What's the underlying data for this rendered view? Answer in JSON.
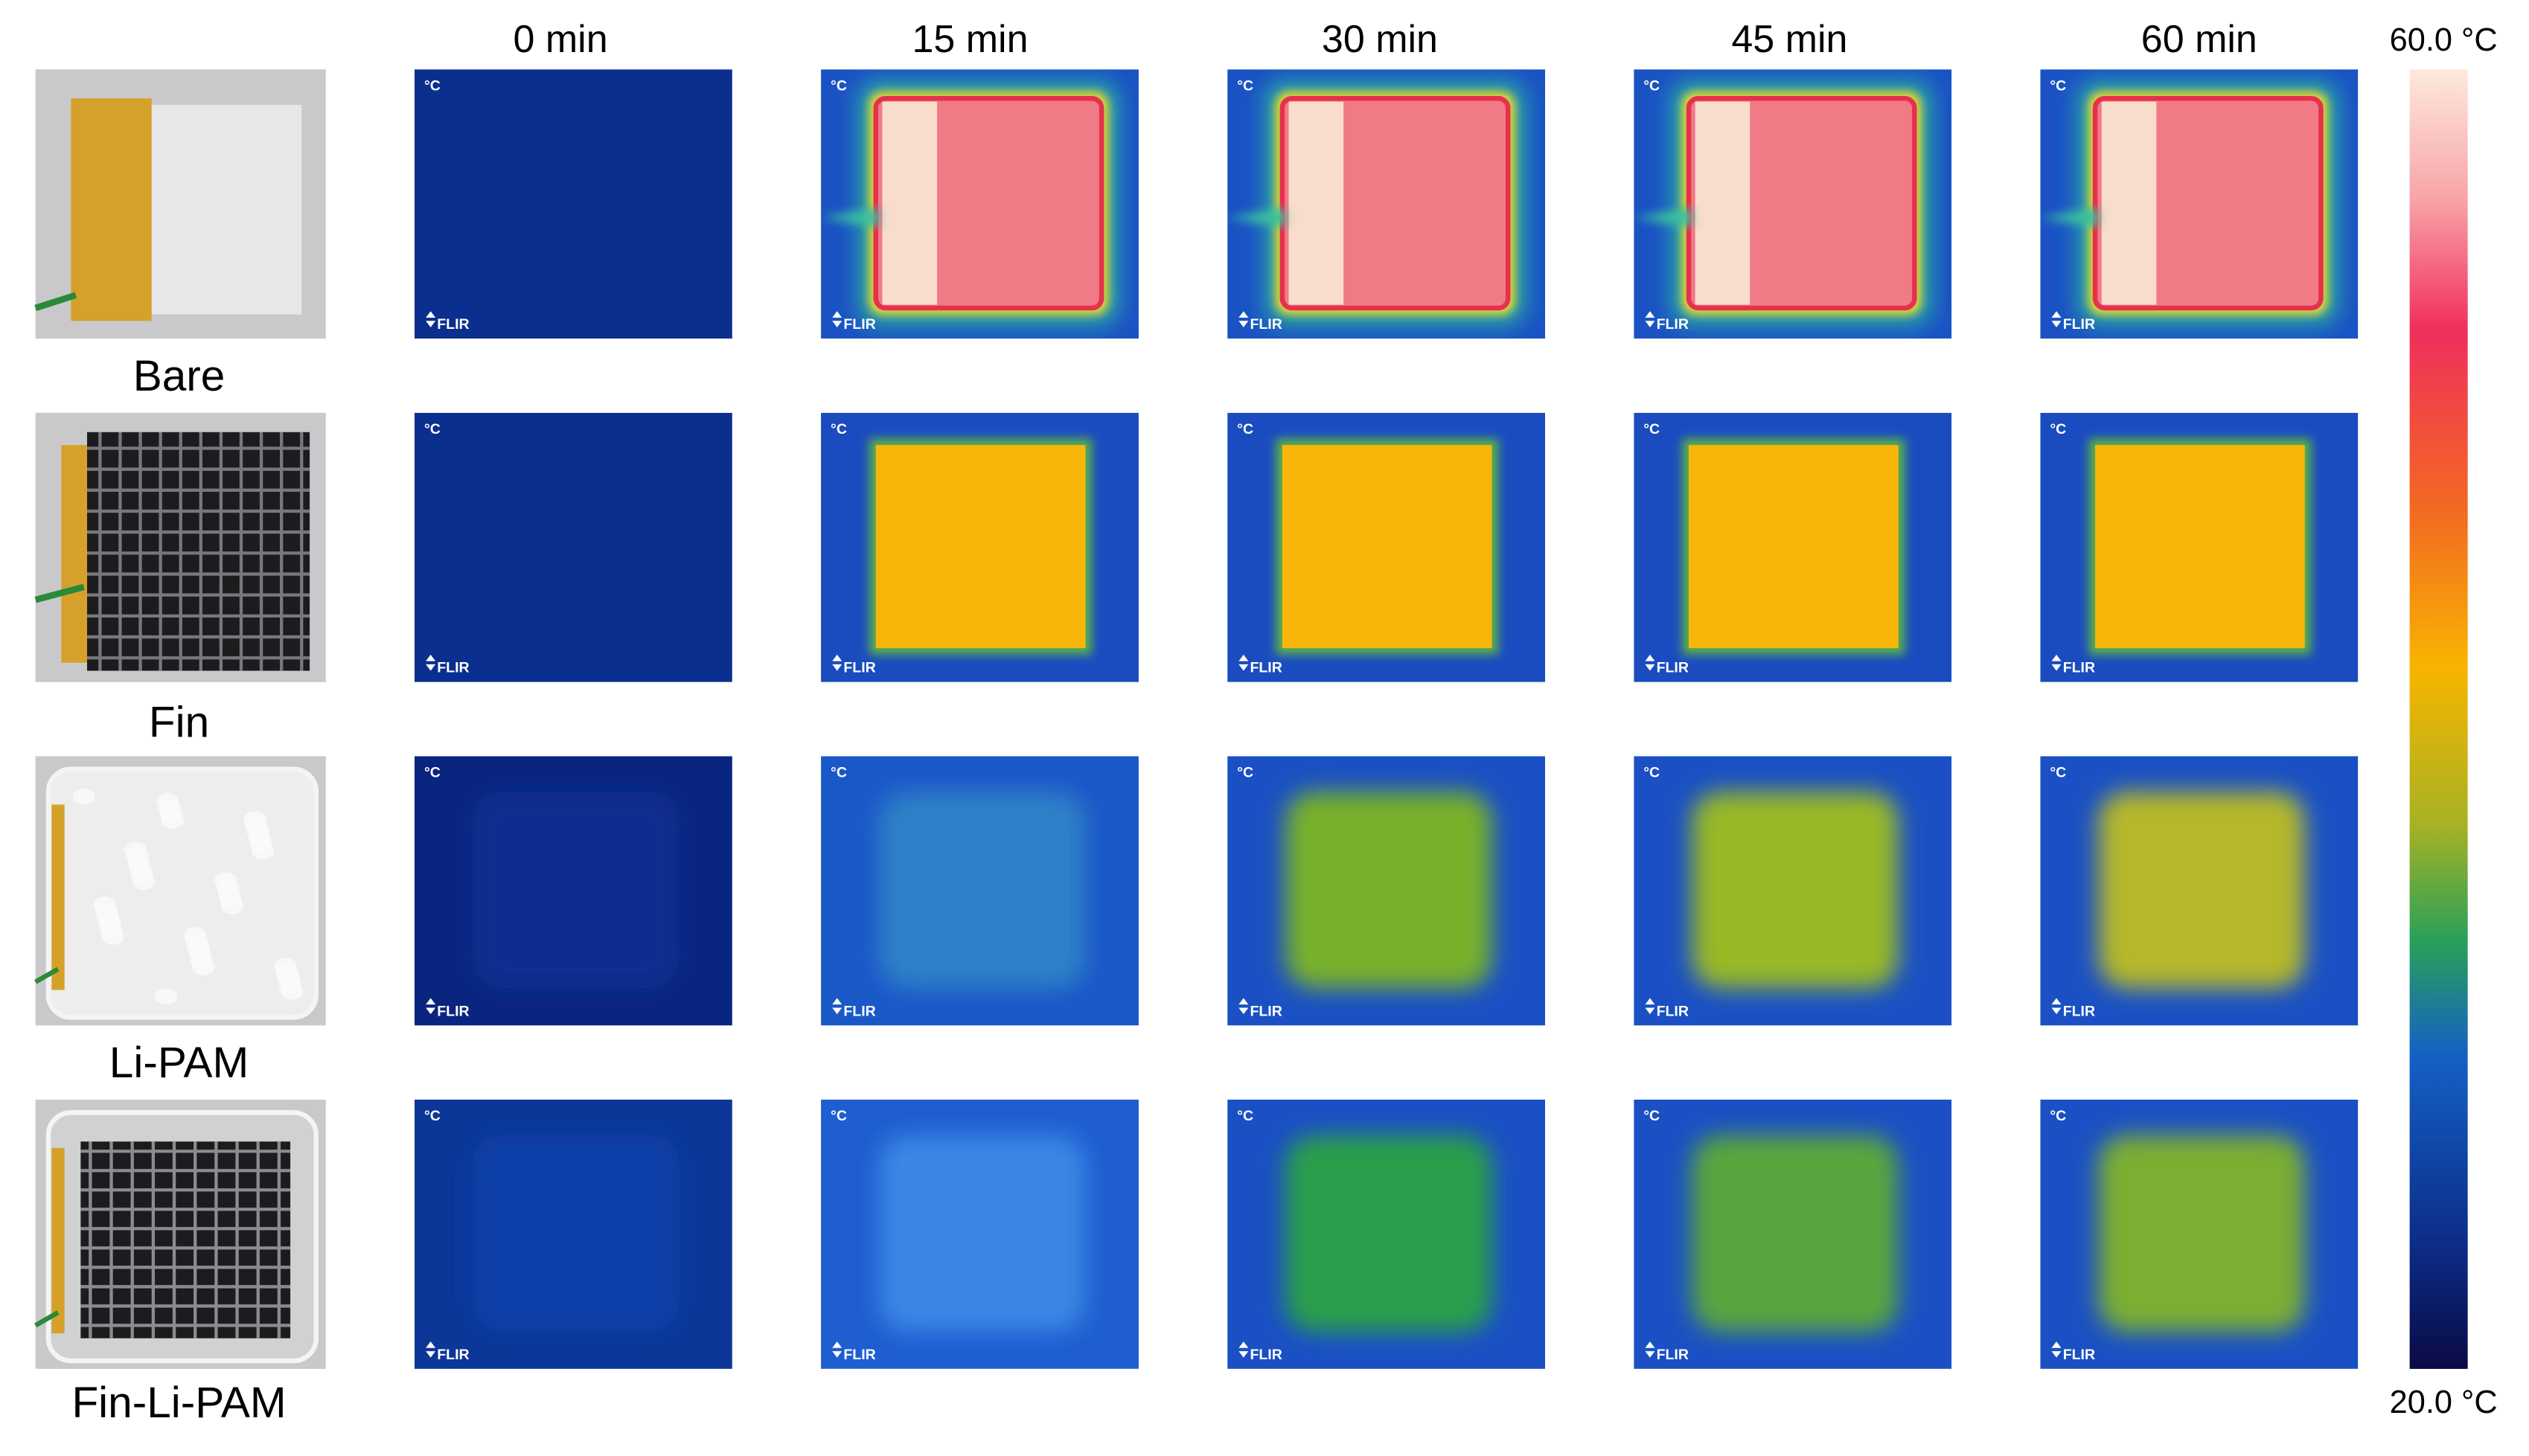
{
  "column_headers": [
    "0 min",
    "15 min",
    "30 min",
    "45 min",
    "60 min"
  ],
  "row_labels": [
    "Bare",
    "Fin",
    "Li-PAM",
    "Fin-Li-PAM"
  ],
  "colorbar": {
    "max_label": "60.0 °C",
    "min_label": "20.0 °C"
  },
  "camera_overlay": {
    "unit": "°C",
    "brand": "FLIR"
  }
}
